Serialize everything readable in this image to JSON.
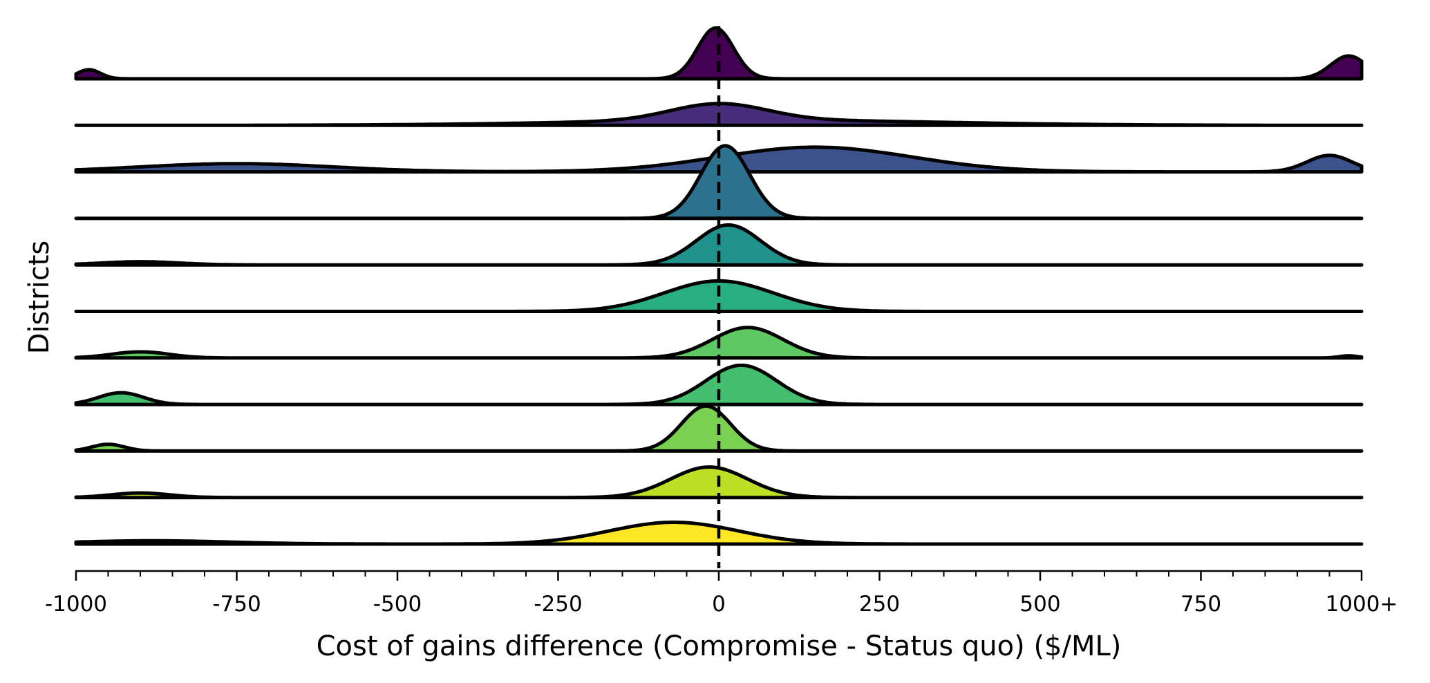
{
  "chart_data": {
    "type": "ridgeline",
    "xlabel": "Cost of gains difference (Compromise - Status quo) ($/ML)",
    "ylabel": "Districts",
    "xlim": [
      -1000,
      1000
    ],
    "xticks": [
      -1000,
      -750,
      -500,
      -250,
      0,
      250,
      500,
      750,
      1000
    ],
    "xtick_labels": [
      "-1000",
      "-750",
      "-500",
      "-250",
      "0",
      "250",
      "500",
      "750",
      "1000+"
    ],
    "reference_line_x": 0,
    "series": [
      {
        "color": "#440154",
        "peak": 0.7,
        "components": [
          [
            -5,
            28,
            1.0
          ],
          [
            -980,
            18,
            0.18
          ],
          [
            980,
            28,
            0.45
          ]
        ]
      },
      {
        "color": "#472d7b",
        "peak": 0.3,
        "components": [
          [
            0,
            75,
            0.8
          ],
          [
            60,
            280,
            0.25
          ]
        ]
      },
      {
        "color": "#3b528b",
        "peak": 0.34,
        "components": [
          [
            150,
            150,
            0.6
          ],
          [
            -750,
            150,
            0.2
          ],
          [
            950,
            35,
            0.4
          ]
        ]
      },
      {
        "color": "#2c728e",
        "peak": 1.0,
        "components": [
          [
            10,
            38,
            1.0
          ]
        ]
      },
      {
        "color": "#21918c",
        "peak": 0.55,
        "components": [
          [
            15,
            50,
            1.0
          ],
          [
            -900,
            60,
            0.08
          ]
        ]
      },
      {
        "color": "#28ae80",
        "peak": 0.42,
        "components": [
          [
            0,
            85,
            1.0
          ]
        ]
      },
      {
        "color": "#5ec962",
        "peak": 0.42,
        "components": [
          [
            45,
            55,
            1.0
          ],
          [
            -900,
            45,
            0.2
          ],
          [
            980,
            15,
            0.07
          ]
        ]
      },
      {
        "color": "#44bf70",
        "peak": 0.54,
        "components": [
          [
            35,
            55,
            1.0
          ],
          [
            -930,
            35,
            0.3
          ]
        ]
      },
      {
        "color": "#7ad151",
        "peak": 0.62,
        "components": [
          [
            -20,
            38,
            1.0
          ],
          [
            -950,
            25,
            0.15
          ]
        ]
      },
      {
        "color": "#bddf26",
        "peak": 0.42,
        "components": [
          [
            -15,
            60,
            1.0
          ],
          [
            -900,
            45,
            0.15
          ]
        ]
      },
      {
        "color": "#fde725",
        "peak": 0.3,
        "components": [
          [
            -70,
            100,
            1.0
          ],
          [
            -880,
            120,
            0.15
          ]
        ]
      }
    ]
  }
}
